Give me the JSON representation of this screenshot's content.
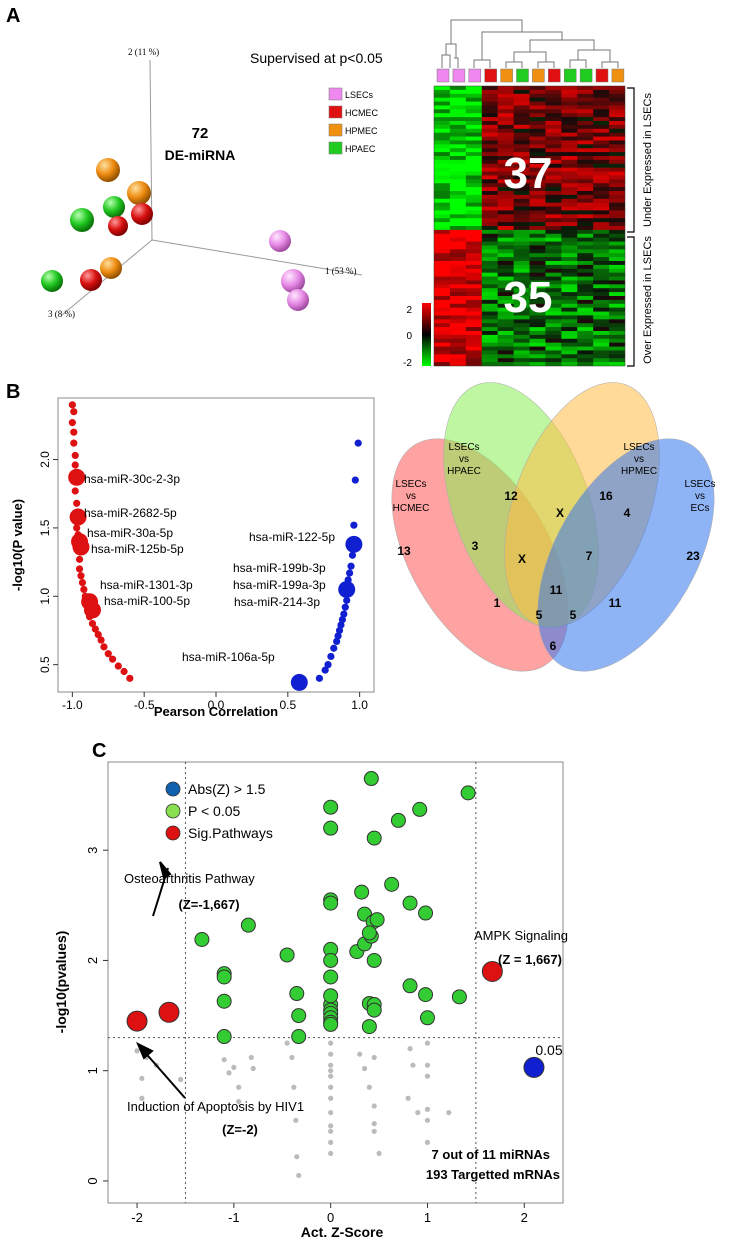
{
  "panel_labels": [
    "A",
    "B",
    "C"
  ],
  "colors": {
    "lsec": "#ee88ee",
    "hcmec": "#e01010",
    "hpmec": "#f09010",
    "hpaec": "#20cc20",
    "blue": "#1020d0",
    "light_green": "#80e060",
    "red_point": "#dd1111",
    "gray_point": "#bbbbbb"
  },
  "panel_a": {
    "title": "Supervised at p<0.05",
    "count_number": "72",
    "count_label": "DE-miRNA",
    "legend": [
      {
        "name": "LSECs",
        "color": "#ee88ee"
      },
      {
        "name": "HCMEC",
        "color": "#e01010"
      },
      {
        "name": "HPMEC",
        "color": "#f09010"
      },
      {
        "name": "HPAEC",
        "color": "#20cc20"
      }
    ],
    "axis_labels": {
      "pc1": "1 (53 %)",
      "pc2": "2 (11 %)",
      "pc3": "3 (8 %)"
    },
    "heatmap": {
      "under_count": "37",
      "over_count": "35",
      "under_label": "Under Expressed in LSECs",
      "over_label": "Over Expressed in LSECs",
      "color_scale_ticks": [
        "2",
        "0",
        "-2"
      ],
      "column_groups": [
        "LSECs",
        "LSECs",
        "LSECs",
        "HCMEC",
        "HPMEC",
        "HPAEC",
        "HPMEC",
        "HCMEC",
        "HPAEC",
        "HPAEC",
        "HCMEC",
        "HPMEC"
      ]
    }
  },
  "chart_data": [
    {
      "type": "scatter",
      "panel": "B",
      "xlabel": "Pearson Correlation",
      "ylabel": "-log10(P value)",
      "xlim": [
        -1.1,
        1.1
      ],
      "ylim": [
        0.3,
        2.45
      ],
      "x_ticks": [
        "-1.0",
        "-0.5",
        "0.0",
        "0.5",
        "1.0"
      ],
      "y_ticks": [
        "0.5",
        "1.0",
        "1.5",
        "2.0"
      ],
      "x_tick_values": [
        -1.0,
        -0.5,
        0.0,
        0.5,
        1.0
      ],
      "y_tick_values": [
        0.5,
        1.0,
        1.5,
        2.0
      ],
      "series": [
        {
          "name": "negative-correlation",
          "color": "#dd1111",
          "x": [
            -1.0,
            -0.99,
            -1.0,
            -0.99,
            -0.99,
            -0.98,
            -0.98,
            -0.98,
            -0.97,
            -0.97,
            -0.96,
            -0.96,
            -0.95,
            -0.95,
            -0.94,
            -0.93,
            -0.92,
            -0.91,
            -0.9,
            -0.89,
            -0.88,
            -0.86,
            -0.84,
            -0.82,
            -0.8,
            -0.78,
            -0.75,
            -0.72,
            -0.68,
            -0.64,
            -0.6
          ],
          "y": [
            2.4,
            2.35,
            2.27,
            2.2,
            2.12,
            2.03,
            1.96,
            1.77,
            1.68,
            1.5,
            1.45,
            1.33,
            1.27,
            1.2,
            1.15,
            1.1,
            1.05,
            1.0,
            0.95,
            0.9,
            0.85,
            0.8,
            0.76,
            0.72,
            0.68,
            0.63,
            0.58,
            0.54,
            0.49,
            0.45,
            0.4
          ]
        },
        {
          "name": "positive-correlation",
          "color": "#1020d0",
          "x": [
            0.99,
            0.97,
            0.96,
            0.95,
            0.94,
            0.93,
            0.92,
            0.91,
            0.9,
            0.89,
            0.88,
            0.87,
            0.86,
            0.85,
            0.84,
            0.82,
            0.8,
            0.78,
            0.76,
            0.72
          ],
          "y": [
            2.12,
            1.85,
            1.52,
            1.3,
            1.22,
            1.17,
            1.12,
            0.97,
            0.92,
            0.87,
            0.83,
            0.79,
            0.75,
            0.71,
            0.67,
            0.62,
            0.56,
            0.5,
            0.46,
            0.4
          ]
        }
      ],
      "highlighted": [
        {
          "label": "hsa-miR-30c-2-3p",
          "x": -0.97,
          "y": 1.87,
          "color": "#dd1111"
        },
        {
          "label": "hsa-miR-2682-5p",
          "x": -0.96,
          "y": 1.58,
          "color": "#dd1111"
        },
        {
          "label": "hsa-miR-30a-5p",
          "x": -0.95,
          "y": 1.4,
          "color": "#dd1111"
        },
        {
          "label": "hsa-miR-125b-5p",
          "x": -0.94,
          "y": 1.36,
          "color": "#dd1111"
        },
        {
          "label": "hsa-miR-1301-3p",
          "x": -0.88,
          "y": 0.96,
          "color": "#dd1111"
        },
        {
          "label": "hsa-miR-100-5p",
          "x": -0.86,
          "y": 0.9,
          "color": "#dd1111"
        },
        {
          "label": "hsa-miR-122-5p",
          "x": 0.96,
          "y": 1.38,
          "color": "#1020d0"
        },
        {
          "label": "hsa-miR-199b-3p",
          "x": 0.91,
          "y": 1.05,
          "color": "#1020d0"
        },
        {
          "label": "hsa-miR-199a-3p",
          "x": 0.91,
          "y": 1.05,
          "color": "#1020d0"
        },
        {
          "label": "hsa-miR-214-3p",
          "x": 0.91,
          "y": 1.05,
          "color": "#1020d0"
        },
        {
          "label": "hsa-miR-106a-5p",
          "x": 0.58,
          "y": 0.37,
          "color": "#1020d0"
        }
      ]
    },
    {
      "type": "venn",
      "panel": "B",
      "sets": [
        {
          "name": "LSECs vs HCMEC",
          "color": "#ff6666"
        },
        {
          "name": "LSECs vs HPAEC",
          "color": "#88ee66"
        },
        {
          "name": "LSECs vs HPMEC",
          "color": "#ffcc66"
        },
        {
          "name": "LSECs vs ECs",
          "color": "#5588ee"
        }
      ],
      "set_labels": [
        "LSECs\nvs\nHCMEC",
        "LSECs\nvs\nHPAEC",
        "LSECs\nvs\nHPMEC",
        "LSECs\nvs\nECs"
      ],
      "region_values": [
        "13",
        "12",
        "16",
        "23",
        "3",
        "X",
        "4",
        "X",
        "7",
        "11",
        "11",
        "1",
        "5",
        "5",
        "6"
      ]
    },
    {
      "type": "scatter",
      "panel": "C",
      "xlabel": "Act. Z-Score",
      "ylabel": "-log10(pvalues)",
      "xlim": [
        -2.3,
        2.4
      ],
      "ylim": [
        -0.2,
        3.8
      ],
      "x_ticks": [
        "-2",
        "-1",
        "0",
        "1",
        "2"
      ],
      "y_ticks": [
        "0",
        "1",
        "2",
        "3"
      ],
      "x_tick_values": [
        -2,
        -1,
        0,
        1,
        2
      ],
      "y_tick_values": [
        0,
        1,
        2,
        3
      ],
      "threshold_label": "0.05",
      "threshold_y": 1.3,
      "z_thresholds": [
        -1.5,
        1.5
      ],
      "legend": [
        {
          "label": "Abs(Z) > 1.5",
          "color": "#1060b0"
        },
        {
          "label": "P < 0.05",
          "color": "#88e050"
        },
        {
          "label": "Sig.Pathways",
          "color": "#dd1111"
        }
      ],
      "series": [
        {
          "name": "P < 0.05",
          "color": "#33cc33",
          "x": [
            -1.33,
            -1.1,
            -1.1,
            -1.1,
            -1.1,
            -0.85,
            -0.45,
            -0.35,
            -0.33,
            -0.33,
            0,
            0,
            0,
            0,
            0,
            0,
            0,
            0,
            0,
            0,
            0,
            0,
            0,
            0,
            0.27,
            0.32,
            0.35,
            0.35,
            0.4,
            0.4,
            0.42,
            0.42,
            0.44,
            0.45,
            0.45,
            0.45,
            0.45,
            0.63,
            0.82,
            0.82,
            0.92,
            0.98,
            0.98,
            1.0,
            1.33,
            1.42,
            0.7,
            0.4,
            0.48
          ],
          "y": [
            2.19,
            1.88,
            1.85,
            1.63,
            1.31,
            2.32,
            2.05,
            1.7,
            1.5,
            1.31,
            3.39,
            3.2,
            2.55,
            2.52,
            2.1,
            2.0,
            1.85,
            1.6,
            1.55,
            1.52,
            1.48,
            1.44,
            1.42,
            1.68,
            2.08,
            2.62,
            2.42,
            2.15,
            1.61,
            1.4,
            3.65,
            2.22,
            2.35,
            2.0,
            1.6,
            1.55,
            3.11,
            2.69,
            2.52,
            1.77,
            3.37,
            2.43,
            1.69,
            1.48,
            1.67,
            3.52,
            3.27,
            2.25,
            2.37
          ]
        },
        {
          "name": "Sig.Pathways",
          "color": "#dd1111",
          "x": [
            -2.0,
            -1.67,
            1.67
          ],
          "y": [
            1.45,
            1.53,
            1.9
          ]
        },
        {
          "name": "Abs(Z) > 1.5",
          "color": "#1020d0",
          "x": [
            2.1
          ],
          "y": [
            1.03
          ]
        },
        {
          "name": "not-significant",
          "color": "#bbbbbb",
          "x": [
            -2.0,
            -1.95,
            -1.95,
            -1.9,
            -1.8,
            -1.55,
            -1.1,
            -1.05,
            -1.0,
            -0.95,
            -0.95,
            -0.82,
            -0.8,
            -0.45,
            -0.4,
            -0.38,
            -0.36,
            -0.35,
            -0.33,
            0,
            0,
            0,
            0,
            0,
            0,
            0,
            0,
            0,
            0,
            0,
            0,
            0.3,
            0.35,
            0.4,
            0.45,
            0.45,
            0.45,
            0.45,
            0.5,
            0.8,
            0.82,
            0.85,
            0.9,
            1.0,
            1.0,
            1.0,
            1.0,
            1.0,
            1.0,
            1.22
          ],
          "y": [
            1.18,
            0.93,
            0.75,
            1.12,
            1.05,
            0.92,
            1.1,
            0.98,
            1.03,
            0.85,
            0.72,
            1.12,
            1.02,
            1.25,
            1.12,
            0.85,
            0.55,
            0.22,
            0.05,
            1.25,
            1.15,
            1.05,
            0.95,
            0.85,
            0.75,
            0.62,
            0.5,
            0.45,
            0.35,
            0.25,
            1.0,
            1.15,
            1.02,
            0.85,
            1.12,
            0.68,
            0.52,
            0.45,
            0.25,
            0.75,
            1.2,
            1.05,
            0.62,
            1.25,
            1.05,
            0.95,
            0.65,
            0.55,
            0.35,
            0.62
          ]
        }
      ],
      "annotations": [
        {
          "title": "Osteoarthritis Pathway",
          "value": "(Z=-1,667)"
        },
        {
          "title": "AMPK Signaling",
          "value": "(Z = 1,667)"
        },
        {
          "title": "Induction of Apoptosis by HIV1",
          "value": "(Z=-2)"
        }
      ],
      "summary_lines": [
        "7 out of 11 miRNAs",
        "193 Targetted mRNAs"
      ]
    }
  ]
}
